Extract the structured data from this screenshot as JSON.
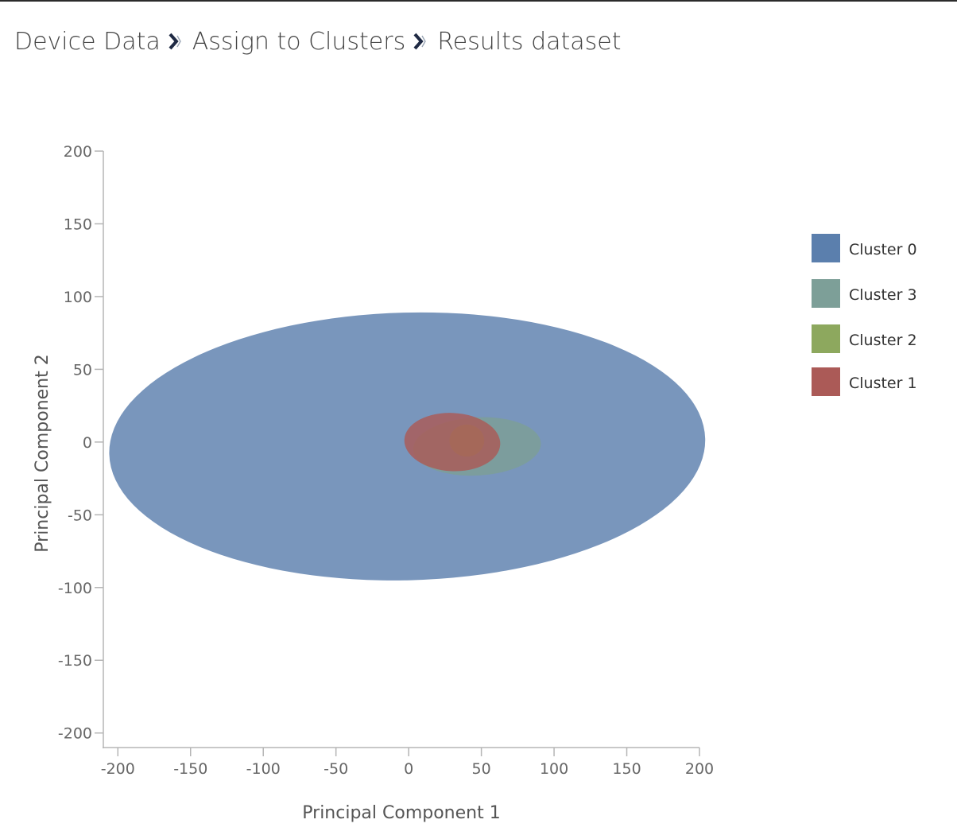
{
  "breadcrumb": {
    "items": [
      "Device Data",
      "Assign to Clusters",
      "Results dataset"
    ],
    "separator_icon": "chevron-right-icon"
  },
  "chart_data": {
    "type": "scatter",
    "subtype": "cluster-ellipses",
    "title": "",
    "xlabel": "Principal Component 1",
    "ylabel": "Principal Component 2",
    "xlim": [
      -210,
      200
    ],
    "ylim": [
      -210,
      200
    ],
    "xticks": [
      -200,
      -150,
      -100,
      -50,
      0,
      50,
      100,
      150,
      200
    ],
    "yticks": [
      200,
      150,
      100,
      50,
      0,
      -50,
      -100,
      -150,
      -200
    ],
    "grid": false,
    "legend_position": "right",
    "series": [
      {
        "name": "Cluster 0",
        "color": "#5b7fad",
        "cx": -1,
        "cy": -3,
        "rx": 205,
        "ry": 92,
        "angle": -1.5,
        "opacity": 0.82
      },
      {
        "name": "Cluster 3",
        "color": "#7d9f98",
        "cx": 47,
        "cy": -3,
        "rx": 44,
        "ry": 20,
        "angle": -3,
        "opacity": 0.85
      },
      {
        "name": "Cluster 2",
        "color": "#8da85e",
        "cx": 40,
        "cy": 1,
        "rx": 12,
        "ry": 11,
        "angle": 0,
        "opacity": 0.85
      },
      {
        "name": "Cluster 1",
        "color": "#ab5a57",
        "cx": 30,
        "cy": 0,
        "rx": 33,
        "ry": 20,
        "angle": 3,
        "opacity": 0.82
      }
    ],
    "legend_order": [
      "Cluster 0",
      "Cluster 3",
      "Cluster 2",
      "Cluster 1"
    ]
  }
}
